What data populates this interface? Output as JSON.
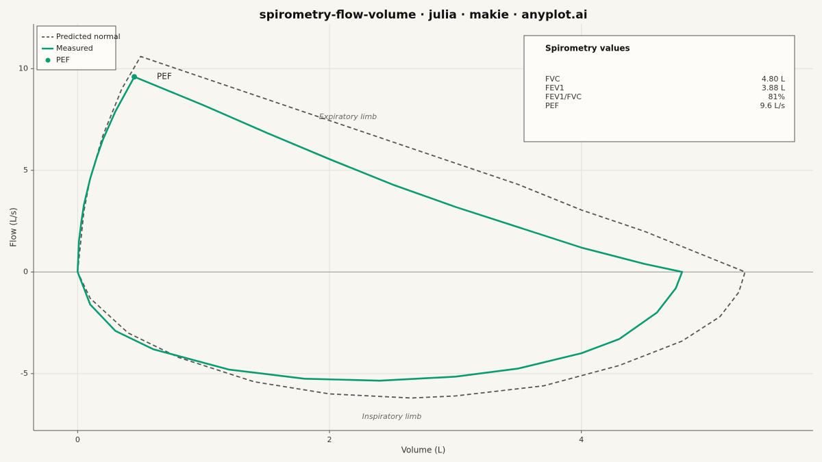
{
  "chart_data": {
    "type": "line",
    "title": "spirometry-flow-volume · julia · makie · anyplot.ai",
    "xlabel": "Volume (L)",
    "ylabel": "Flow (L/s)",
    "xlim": [
      -0.35,
      5.84
    ],
    "ylim": [
      -7.8,
      12.2
    ],
    "xticks": [
      0,
      2,
      4
    ],
    "yticks": [
      -5,
      0,
      5,
      10
    ],
    "grid": true,
    "legend": "upper left",
    "series": [
      {
        "name": "Predicted normal",
        "color": "#555555",
        "style": "dashed",
        "x": [
          0,
          0.05,
          0.1,
          0.2,
          0.35,
          0.5,
          1.5,
          2.5,
          3.5,
          4.0,
          4.5,
          5.3,
          5.25,
          5.1,
          4.8,
          4.3,
          3.7,
          3.0,
          2.65,
          2.0,
          1.4,
          0.8,
          0.4,
          0.1,
          0
        ],
        "values": [
          0,
          3,
          4.6,
          6.7,
          9,
          10.6,
          8.5,
          6.4,
          4.3,
          3.05,
          2.0,
          0,
          -1.0,
          -2.2,
          -3.4,
          -4.6,
          -5.6,
          -6.1,
          -6.2,
          -6.0,
          -5.4,
          -4.2,
          -3.0,
          -1.3,
          0
        ]
      },
      {
        "name": "Measured",
        "color": "#0a9b72",
        "style": "solid",
        "x": [
          0,
          0.01,
          0.03,
          0.05,
          0.1,
          0.15,
          0.2,
          0.3,
          0.45,
          1,
          1.5,
          2,
          2.5,
          3,
          3.5,
          4,
          4.5,
          4.8,
          4.75,
          4.6,
          4.3,
          4.0,
          3.5,
          3.0,
          2.4,
          1.8,
          1.2,
          0.6,
          0.3,
          0.1,
          0
        ],
        "values": [
          0,
          1.5,
          2.5,
          3.3,
          4.6,
          5.6,
          6.5,
          7.9,
          9.6,
          8.2,
          6.85,
          5.55,
          4.3,
          3.2,
          2.2,
          1.2,
          0.4,
          0,
          -0.8,
          -2.0,
          -3.3,
          -4.0,
          -4.75,
          -5.15,
          -5.35,
          -5.25,
          -4.8,
          -3.8,
          -2.9,
          -1.6,
          0
        ]
      },
      {
        "name": "PEF",
        "color": "#0a9b72",
        "style": "marker",
        "x": [
          0.45
        ],
        "values": [
          9.6
        ]
      }
    ],
    "annotations": [
      "PEF",
      "Expiratory limb",
      "Inspiratory limb"
    ],
    "stats_box": {
      "title": "Spirometry values",
      "rows": [
        [
          "FVC",
          "4.80 L"
        ],
        [
          "FEV1",
          "3.88 L"
        ],
        [
          "FEV1/FVC",
          "81%"
        ],
        [
          "PEF",
          "9.6 L/s"
        ]
      ]
    }
  }
}
